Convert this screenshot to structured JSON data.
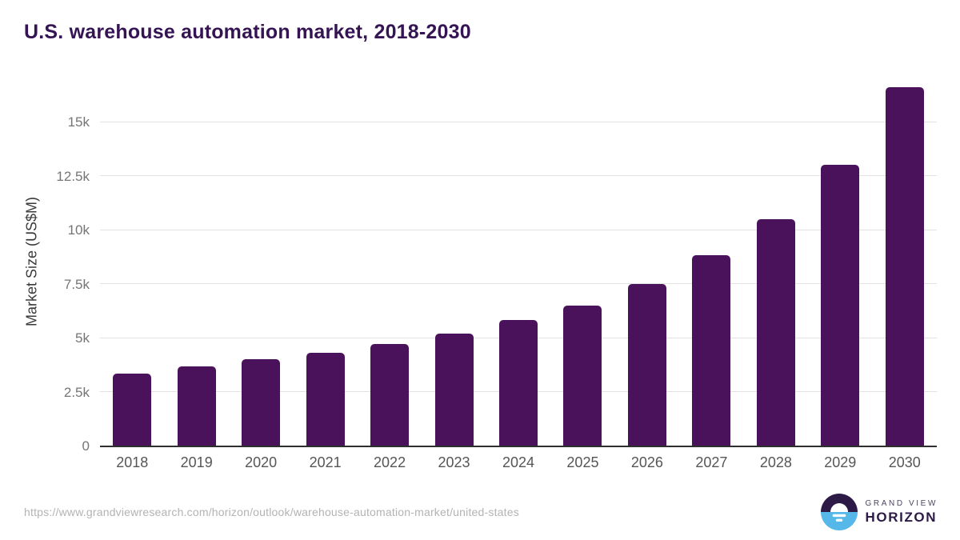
{
  "title": "U.S. warehouse automation market, 2018-2030",
  "chart_data": {
    "type": "bar",
    "title": "U.S. warehouse automation market, 2018-2030",
    "categories": [
      "2018",
      "2019",
      "2020",
      "2021",
      "2022",
      "2023",
      "2024",
      "2025",
      "2026",
      "2027",
      "2028",
      "2029",
      "2030"
    ],
    "values": [
      3350,
      3650,
      4000,
      4300,
      4700,
      5200,
      5800,
      6500,
      7500,
      8800,
      10500,
      13000,
      16600
    ],
    "xlabel": "",
    "ylabel": "Market Size (US$M)",
    "ylim": [
      0,
      17200
    ],
    "yticks": [
      {
        "value": 0,
        "label": "0"
      },
      {
        "value": 2500,
        "label": "2.5k"
      },
      {
        "value": 5000,
        "label": "5k"
      },
      {
        "value": 7500,
        "label": "7.5k"
      },
      {
        "value": 10000,
        "label": "10k"
      },
      {
        "value": 12500,
        "label": "12.5k"
      },
      {
        "value": 15000,
        "label": "15k"
      }
    ],
    "grid": "horizontal",
    "legend": "none",
    "bar_color": "#4a125a"
  },
  "footer": {
    "source_url": "https://www.grandviewresearch.com/horizon/outlook/warehouse-automation-market/united-states"
  },
  "logo": {
    "line1": "GRAND VIEW",
    "line2": "HORIZON"
  },
  "colors": {
    "bar": "#4a125a",
    "title": "#351453",
    "axis_label": "#3a3a3a",
    "tick_label": "#757575",
    "x_label": "#565656",
    "gridline": "#e2e2e2",
    "axis_line": "#2f2f2f",
    "url": "#b3b3b3",
    "logo_dark": "#2e1a47",
    "logo_blue": "#55b8e8",
    "logo_gray": "#4c4560"
  }
}
